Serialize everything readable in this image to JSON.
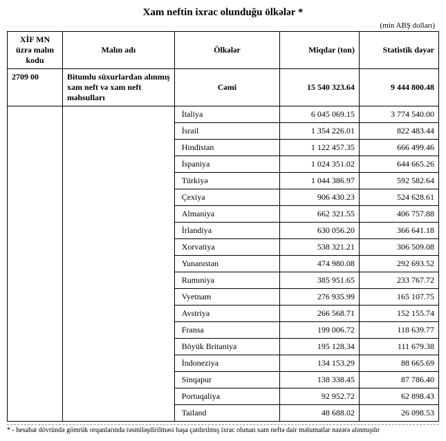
{
  "title": "Xam neftin ixrac olunduğu ölkələr *",
  "unit": "(min ABŞ dolları)",
  "headers": {
    "code": "XİF MN üzrə malın kodu",
    "name": "Malın adı",
    "country": "Ölkələr",
    "qty": "Miqdar (ton)",
    "value": "Statistik dəyər"
  },
  "total": {
    "code": "2709 00",
    "name": "Bitumlu süxurlardan alınmış xam neft və xam neft məhsulları",
    "label": "Cəmi",
    "qty": "15 540 323.64",
    "value": "9 444 800.48"
  },
  "rows": [
    {
      "country": "İtaliya",
      "qty": "6 045 069.15",
      "value": "3 774 540.00"
    },
    {
      "country": "İsrail",
      "qty": "1 354 226.01",
      "value": "822 483.44"
    },
    {
      "country": "Hindistan",
      "qty": "1 122 457.35",
      "value": "666 499.46"
    },
    {
      "country": "İspaniya",
      "qty": "1 024 351.02",
      "value": "644 665.26"
    },
    {
      "country": "Türkiyə",
      "qty": "1 044 386.97",
      "value": "592 582.64"
    },
    {
      "country": "Çexiya",
      "qty": "906 430.23",
      "value": "524 628.61"
    },
    {
      "country": "Almaniya",
      "qty": "662 321.55",
      "value": "406 757.88"
    },
    {
      "country": "İrlandiya",
      "qty": "630 056.20",
      "value": "366 641.18"
    },
    {
      "country": "Xorvatiya",
      "qty": "538 321.21",
      "value": "306 509.08"
    },
    {
      "country": "Yunanıstan",
      "qty": "474 980.08",
      "value": "292 693.52"
    },
    {
      "country": "Rumıniya",
      "qty": "385 951.65",
      "value": "233 767.72"
    },
    {
      "country": "Vyetnam",
      "qty": "276 935.99",
      "value": "165 107.75"
    },
    {
      "country": "Avstriya",
      "qty": "266 568.71",
      "value": "152 155.74"
    },
    {
      "country": "Fransa",
      "qty": "199 006.72",
      "value": "118 639.77"
    },
    {
      "country": "Böyük Britaniya",
      "qty": "195 128.34",
      "value": "111 679.38"
    },
    {
      "country": "İndoneziya",
      "qty": "134 153.29",
      "value": "88 665.69"
    },
    {
      "country": "Sinqapur",
      "qty": "138 338.45",
      "value": "87 786.40"
    },
    {
      "country": "Portuqaliya",
      "qty": "92 952.72",
      "value": "62 898.43"
    },
    {
      "country": "Tailand",
      "qty": "48 688.02",
      "value": "26 098.53"
    }
  ],
  "footnote": "* - hesabat dövründə gömrük orqanlarında rəsmiləşdirilməsi başa çatdırılmış ixrac olunan xam neftə dair məlumatlar nəzərə alınmışdır",
  "style": {
    "border_color": "#000000",
    "background": "#ffffff",
    "font_family": "Times New Roman",
    "title_fontsize": 15,
    "body_fontsize": 12,
    "footnote_fontsize": 10
  }
}
